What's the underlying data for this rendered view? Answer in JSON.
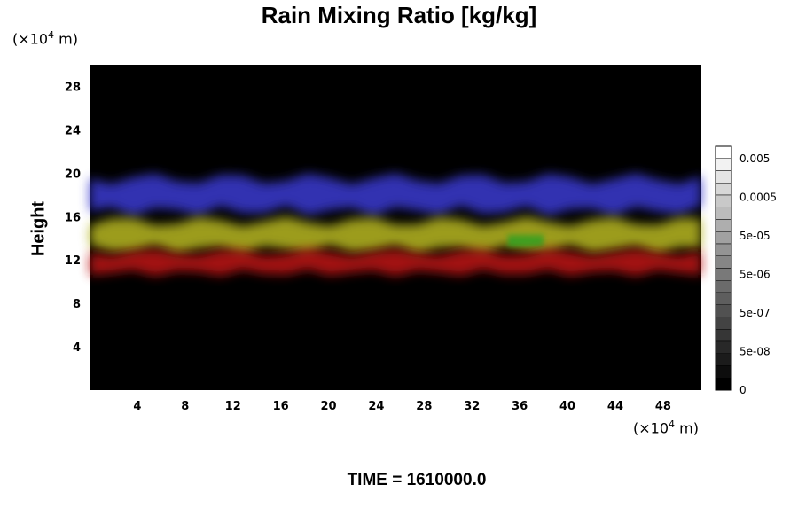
{
  "chart_data": {
    "type": "heatmap",
    "title": "Rain Mixing Ratio [kg/kg]",
    "ylabel": "Height",
    "x_unit": {
      "prefix": "(×10",
      "exp": "4",
      "suffix": " m)"
    },
    "y_unit": {
      "prefix": "(×10",
      "exp": "4",
      "suffix": " m)"
    },
    "xlim": [
      0,
      51.2
    ],
    "ylim": [
      0,
      30
    ],
    "x_ticks": [
      4,
      8,
      12,
      16,
      20,
      24,
      28,
      32,
      36,
      40,
      44,
      48
    ],
    "y_ticks": [
      4,
      8,
      12,
      16,
      20,
      24,
      28
    ],
    "colorbar": {
      "tick_labels": [
        "0.005",
        "0.0005",
        "5e-05",
        "5e-06",
        "5e-07",
        "5e-08",
        "0"
      ],
      "levels": 20
    },
    "background_color": "#000000",
    "layers": [
      {
        "color": "#3a3ad0",
        "y_range": [
          16,
          20
        ],
        "x_range": [
          0,
          51.2
        ]
      },
      {
        "color": "#b8b820",
        "y_range": [
          12.5,
          16
        ],
        "x_range": [
          0,
          51.2
        ]
      },
      {
        "color": "#30a020",
        "y_range": [
          13,
          14.5
        ],
        "x_range": [
          35,
          38
        ]
      },
      {
        "color": "#c01515",
        "y_range": [
          10.5,
          13
        ],
        "x_range": [
          0,
          51.2
        ]
      }
    ],
    "time_label": "TIME = 1610000.0"
  }
}
